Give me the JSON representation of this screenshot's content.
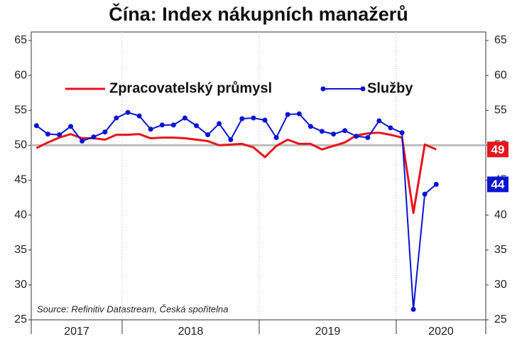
{
  "chart_data": {
    "type": "line",
    "title": "Čína: Index nákupních manažerů",
    "source": "Source: Refinitiv Datastream, Česká spořitelna",
    "x": [
      2017.375,
      2017.458,
      2017.542,
      2017.625,
      2017.708,
      2017.792,
      2017.875,
      2017.958,
      2018.042,
      2018.125,
      2018.208,
      2018.292,
      2018.375,
      2018.458,
      2018.542,
      2018.625,
      2018.708,
      2018.792,
      2018.875,
      2018.958,
      2019.042,
      2019.125,
      2019.208,
      2019.292,
      2019.375,
      2019.458,
      2019.542,
      2019.625,
      2019.708,
      2019.792,
      2019.875,
      2019.958,
      2020.042,
      2020.125,
      2020.208,
      2020.292
    ],
    "series": [
      {
        "name": "Zpracovatelský průmysl",
        "color": "#e8141b",
        "markers": false,
        "values": [
          49.6,
          50.4,
          51.1,
          51.6,
          51.0,
          51.0,
          50.8,
          51.5,
          51.5,
          51.6,
          51.0,
          51.1,
          51.1,
          51.0,
          50.8,
          50.6,
          50.0,
          50.1,
          50.2,
          49.7,
          48.3,
          49.9,
          50.8,
          50.2,
          50.2,
          49.4,
          49.9,
          50.4,
          51.4,
          51.7,
          51.8,
          51.5,
          51.1,
          40.3,
          50.1,
          49.4
        ],
        "value_labels": [
          null,
          null,
          null,
          null,
          null,
          null,
          null,
          null,
          null,
          null,
          null,
          null,
          null,
          null,
          null,
          null,
          null,
          null,
          null,
          null,
          null,
          null,
          null,
          null,
          null,
          null,
          null,
          null,
          null,
          null,
          null,
          null,
          null,
          null,
          null,
          "49"
        ]
      },
      {
        "name": "Služby",
        "color": "#0a14d2",
        "markers": true,
        "values": [
          52.8,
          51.6,
          51.5,
          52.7,
          50.6,
          51.2,
          51.9,
          53.9,
          54.7,
          54.2,
          52.3,
          52.9,
          52.9,
          53.9,
          52.8,
          51.5,
          53.1,
          50.8,
          53.8,
          53.9,
          53.6,
          51.1,
          54.4,
          54.5,
          52.7,
          52.0,
          51.6,
          52.1,
          51.3,
          51.1,
          53.5,
          52.5,
          51.8,
          26.5,
          43.0,
          44.4
        ],
        "value_labels": [
          null,
          null,
          null,
          null,
          null,
          null,
          null,
          null,
          null,
          null,
          null,
          null,
          null,
          null,
          null,
          null,
          null,
          null,
          null,
          null,
          null,
          null,
          null,
          null,
          null,
          null,
          null,
          null,
          null,
          null,
          null,
          null,
          null,
          null,
          null,
          "44"
        ]
      }
    ],
    "xlim": [
      2017.337,
      2020.653
    ],
    "xticks": [
      2017,
      2018,
      2019,
      2020
    ],
    "ylim": [
      25,
      65
    ],
    "yticks": [
      25,
      30,
      35,
      40,
      45,
      50,
      55,
      60,
      65
    ],
    "y2lim": [
      25,
      65
    ],
    "y2ticks": [
      25,
      30,
      35,
      40,
      45,
      50,
      55,
      60,
      65
    ],
    "reference_line": 50,
    "legend": "top"
  }
}
